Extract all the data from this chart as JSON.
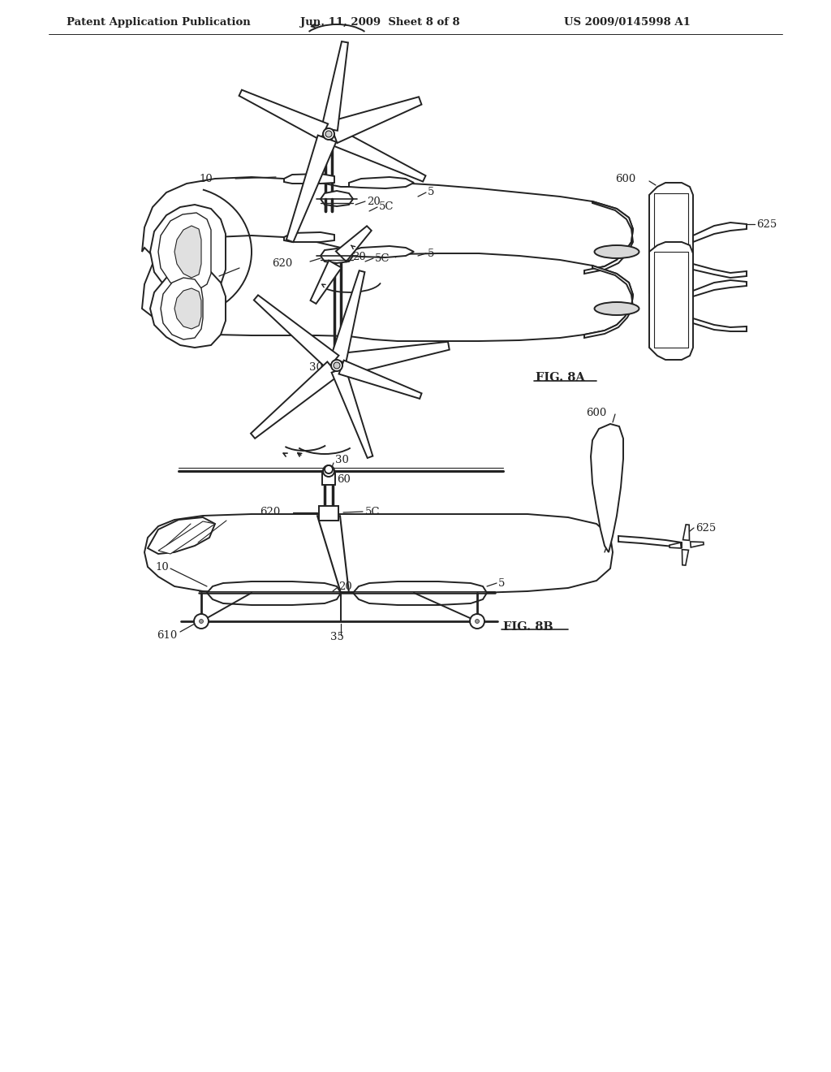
{
  "background_color": "#ffffff",
  "header_left": "Patent Application Publication",
  "header_center": "Jun. 11, 2009  Sheet 8 of 8",
  "header_right": "US 2009/0145998 A1",
  "fig8a_label": "FIG. 8A",
  "fig8b_label": "FIG. 8B",
  "line_color": "#222222",
  "line_width": 1.4,
  "label_fontsize": 9.5,
  "header_fontsize": 9.5,
  "fig_label_fontsize": 10.5
}
